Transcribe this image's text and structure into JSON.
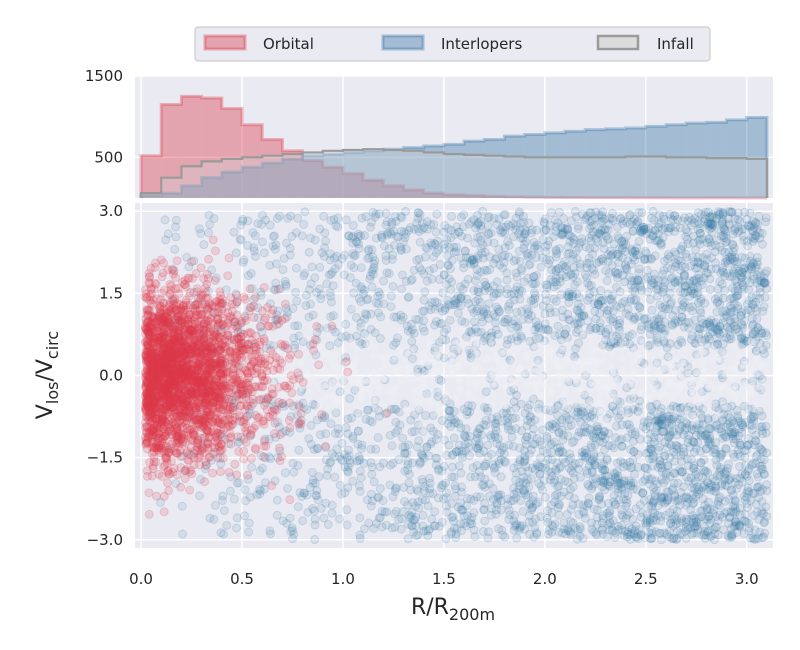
{
  "chart_data": [
    {
      "type": "histogram",
      "panel": "top",
      "y_ticks": [
        1500,
        500
      ],
      "ylim": [
        0,
        1500
      ],
      "xlim": [
        -0.03,
        3.13
      ],
      "bin_edges": [
        0.0,
        0.1,
        0.2,
        0.3,
        0.4,
        0.5,
        0.6,
        0.7,
        0.8,
        0.9,
        1.0,
        1.1,
        1.2,
        1.3,
        1.4,
        1.5,
        1.6,
        1.7,
        1.8,
        1.9,
        2.0,
        2.1,
        2.2,
        2.3,
        2.4,
        2.5,
        2.6,
        2.7,
        2.8,
        2.9,
        3.0,
        3.1
      ],
      "series": [
        {
          "name": "Orbital",
          "color": "#dd3b4a",
          "style": "filled",
          "values": [
            520,
            1150,
            1250,
            1230,
            1100,
            900,
            720,
            580,
            460,
            380,
            300,
            220,
            150,
            100,
            60,
            40,
            30,
            20,
            15,
            10,
            8,
            6,
            5,
            4,
            3,
            3,
            2,
            2,
            2,
            2,
            1
          ]
        },
        {
          "name": "Interlopers",
          "color": "#3a78a8",
          "style": "filled",
          "values": [
            30,
            60,
            150,
            250,
            320,
            380,
            430,
            480,
            520,
            540,
            560,
            580,
            600,
            620,
            640,
            660,
            700,
            720,
            760,
            780,
            800,
            820,
            840,
            850,
            860,
            880,
            900,
            920,
            930,
            960,
            990
          ]
        },
        {
          "name": "Infall",
          "color": "#9a9a9a",
          "style": "step",
          "values": [
            60,
            250,
            390,
            450,
            480,
            500,
            520,
            540,
            560,
            580,
            590,
            600,
            590,
            580,
            560,
            540,
            530,
            520,
            510,
            500,
            500,
            500,
            500,
            500,
            510,
            510,
            500,
            500,
            490,
            490,
            480
          ]
        }
      ]
    },
    {
      "type": "scatter",
      "panel": "bottom",
      "xlabel": "R/R",
      "xlabel_sub": "200m",
      "ylabel": "V",
      "ylabel_sub1": "los",
      "ylabel_mid": "/V",
      "ylabel_sub2": "circ",
      "x_ticks": [
        "0.0",
        "0.5",
        "1.0",
        "1.5",
        "2.0",
        "2.5",
        "3.0"
      ],
      "y_ticks": [
        "3.0",
        "1.5",
        "0.0",
        "−1.5",
        "−3.0"
      ],
      "xlim": [
        -0.03,
        3.13
      ],
      "ylim": [
        -3.15,
        3.15
      ],
      "series": [
        {
          "name": "Interlopers",
          "color": "#3a78a8"
        },
        {
          "name": "Orbital",
          "color": "#dd3b4a"
        }
      ]
    }
  ],
  "legend": {
    "placement": "top-center",
    "entries": [
      {
        "label": "Orbital",
        "color": "#dd3b4a"
      },
      {
        "label": "Interlopers",
        "color": "#3a78a8"
      },
      {
        "label": "Infall",
        "color": "#9a9a9a"
      }
    ]
  },
  "style": {
    "axes_bg": "#eaeaf2",
    "grid": "#ffffff"
  }
}
